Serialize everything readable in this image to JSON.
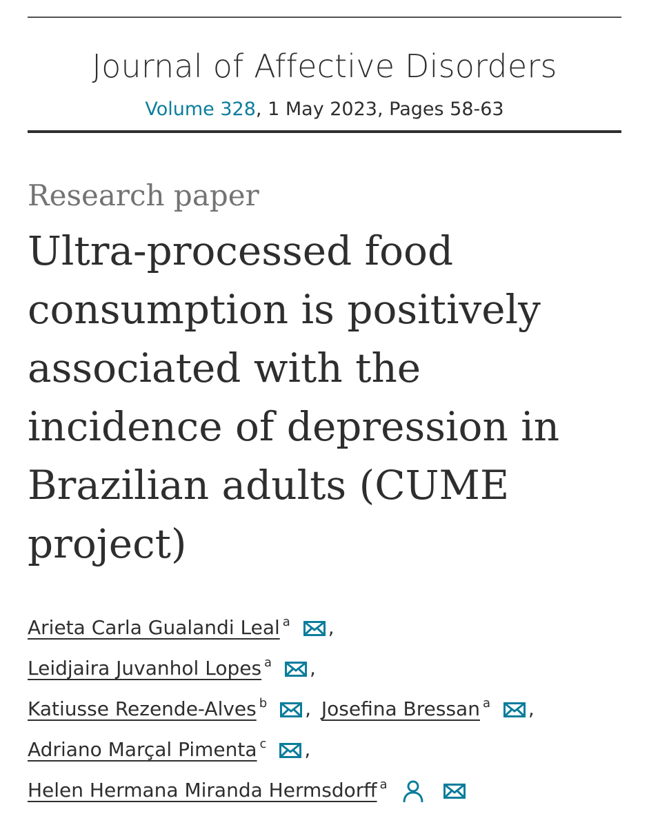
{
  "journal": {
    "title": "Journal of Affective Disorders",
    "volume_link": "Volume 328",
    "issue_rest": ", 1 May 2023, Pages 58-63"
  },
  "article": {
    "type": "Research paper",
    "title": "Ultra-processed food consumption is positively associated with the incidence of depression in Brazilian adults (CUME project)"
  },
  "authors": [
    {
      "name": "Arieta Carla Gualandi Leal",
      "aff": "a"
    },
    {
      "name": "Leidjaira Juvanhol Lopes",
      "aff": "a"
    },
    {
      "name": "Katiusse Rezende-Alves",
      "aff": "b"
    },
    {
      "name": "Josefina Bressan",
      "aff": "a"
    },
    {
      "name": "Adriano Marçal Pimenta",
      "aff": "c"
    },
    {
      "name": "Helen Hermana Miranda Hermsdorff",
      "aff": "a"
    }
  ],
  "separator": ",",
  "icons": {
    "email": "envelope-icon",
    "corresponding": "person-icon"
  },
  "colors": {
    "link": "#0c7d9c",
    "text": "#2e2e2e",
    "muted": "#737373"
  }
}
